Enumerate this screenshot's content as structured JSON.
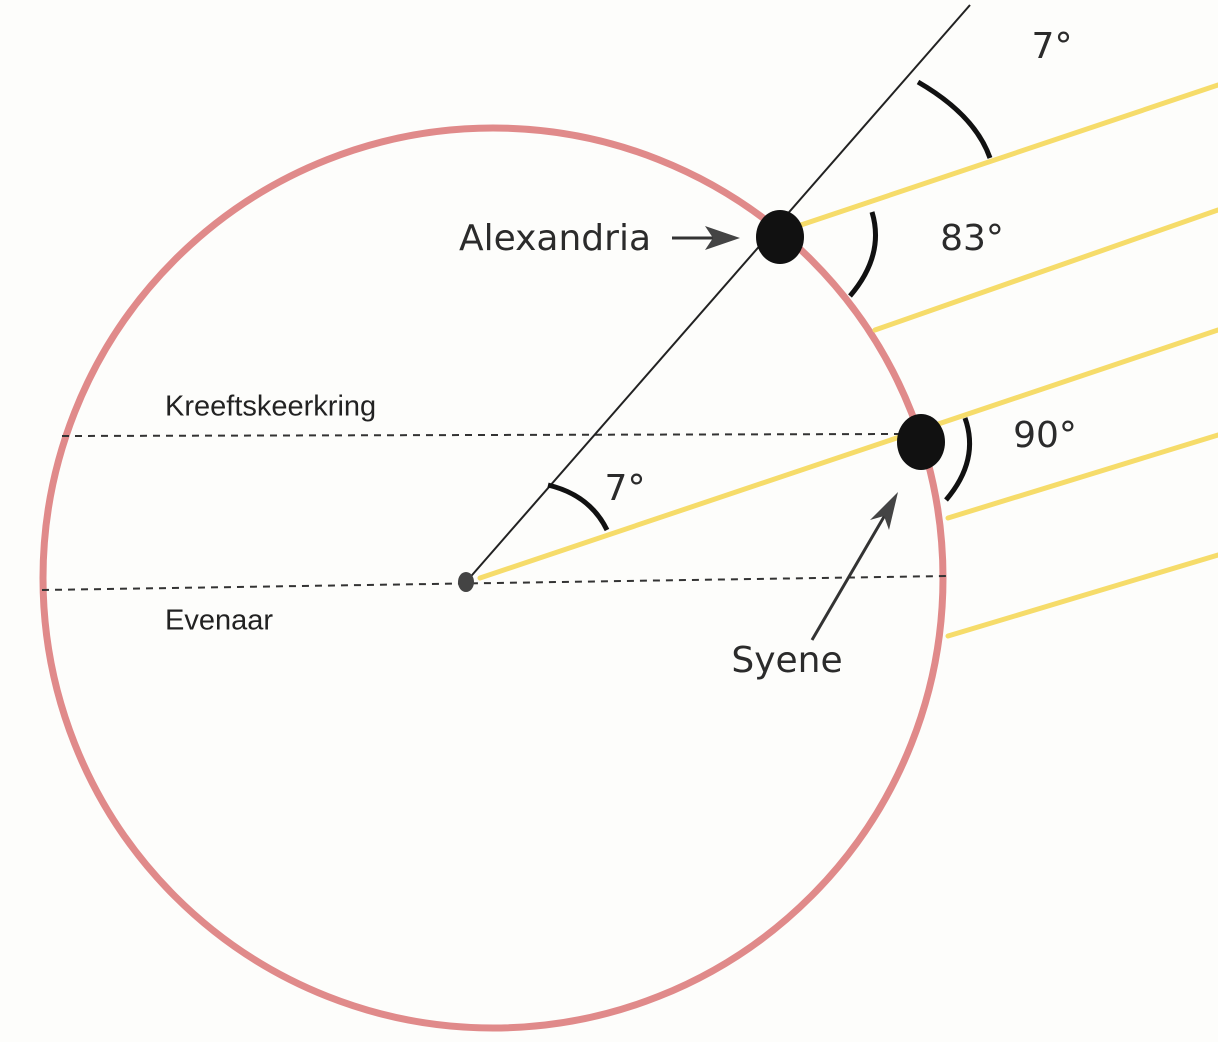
{
  "labels": {
    "alexandria": "Alexandria",
    "syene": "Syene",
    "tropic": "Kreeftskeerkring",
    "equator": "Evenaar",
    "angle_top": "7°",
    "angle_alexandria": "83°",
    "angle_syene": "90°",
    "angle_center": "7°"
  }
}
